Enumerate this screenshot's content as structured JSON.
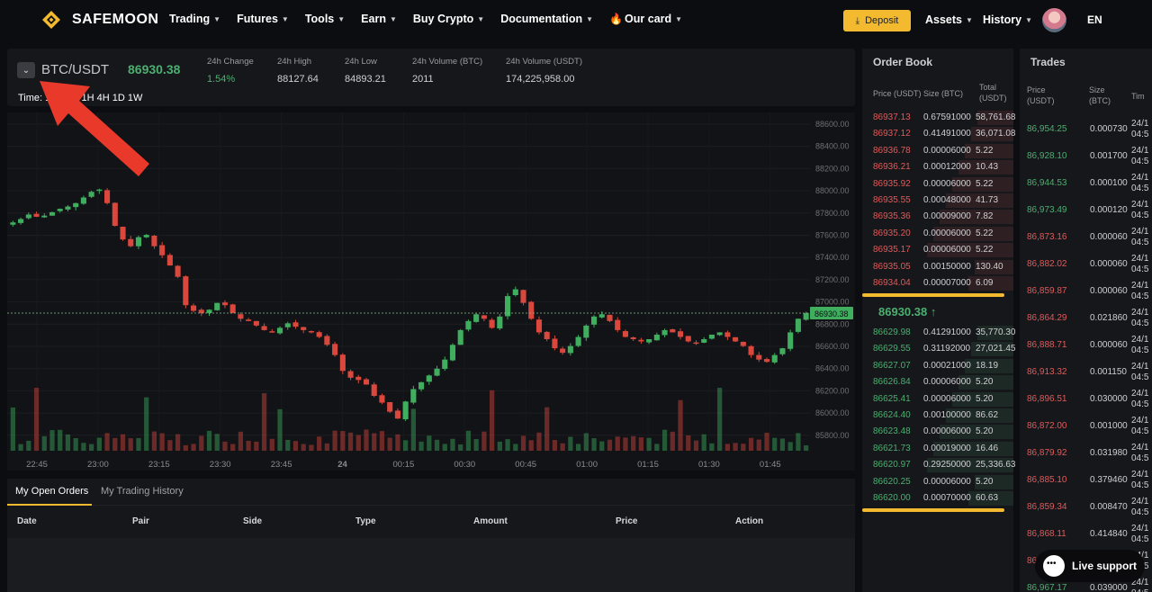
{
  "brand": {
    "name": "SAFEMOON"
  },
  "nav": {
    "items": [
      "Trading",
      "Futures",
      "Tools",
      "Earn",
      "Buy Crypto",
      "Documentation",
      "Our card"
    ],
    "deposit_label": "Deposit",
    "assets_label": "Assets",
    "history_label": "History",
    "lang_label": "EN"
  },
  "ticker": {
    "pair": "BTC/USDT",
    "last_price": "86930.38",
    "stats": [
      {
        "label": "24h Change",
        "value": "1.54%"
      },
      {
        "label": "24h High",
        "value": "88127.64"
      },
      {
        "label": "24h Low",
        "value": "84893.21"
      },
      {
        "label": "24h Volume (BTC)",
        "value": "2011"
      },
      {
        "label": "24h Volume (USDT)",
        "value": "174,225,958.00"
      }
    ],
    "timeframes_label": "Time: 1m",
    "timeframes_tail": "1H 4H 1D 1W"
  },
  "chart_data": {
    "type": "candlestick",
    "x_tick_labels": [
      "22:45",
      "23:00",
      "23:15",
      "23:30",
      "23:45",
      "24",
      "00:15",
      "00:30",
      "00:45",
      "01:00",
      "01:15",
      "01:30",
      "01:45"
    ],
    "y_tick_labels": [
      "88600.00",
      "88400.00",
      "88200.00",
      "88000.00",
      "87800.00",
      "87600.00",
      "87400.00",
      "87200.00",
      "87000.00",
      "86800.00",
      "86600.00",
      "86400.00",
      "86200.00",
      "86000.00",
      "85800.00"
    ],
    "ylim": [
      85700,
      88700
    ],
    "current_price_label": "86930.38",
    "close_path": [
      87730,
      87760,
      87800,
      87780,
      87790,
      87820,
      87850,
      87870,
      87900,
      87950,
      88000,
      88020,
      87900,
      87700,
      87580,
      87520,
      87600,
      87620,
      87520,
      87440,
      87350,
      87250,
      87000,
      86950,
      86930,
      86960,
      87020,
      87000,
      86930,
      86880,
      86860,
      86820,
      86780,
      86760,
      86800,
      86840,
      86810,
      86780,
      86760,
      86720,
      86650,
      86560,
      86420,
      86360,
      86340,
      86300,
      86200,
      86140,
      86060,
      86000,
      86150,
      86260,
      86320,
      86380,
      86440,
      86520,
      86650,
      86780,
      86860,
      86920,
      86880,
      86800,
      86900,
      87080,
      87140,
      87020,
      86880,
      86760,
      86700,
      86620,
      86580,
      86640,
      86720,
      86820,
      86900,
      86920,
      86860,
      86780,
      86720,
      86700,
      86680,
      86700,
      86740,
      86780,
      86760,
      86720,
      86680,
      86660,
      86700,
      86740,
      86760,
      86720,
      86680,
      86640,
      86560,
      86520,
      86500,
      86560,
      86620,
      86760,
      86880,
      86930
    ]
  },
  "orders": {
    "tabs": [
      "My Open Orders",
      "My Trading History"
    ],
    "columns": [
      "Date",
      "Pair",
      "Side",
      "Type",
      "Amount",
      "Price",
      "Action"
    ]
  },
  "orderbook": {
    "title": "Order Book",
    "head_price": "Price (USDT)",
    "head_size": "Size (BTC)",
    "head_total_1": "Total",
    "head_total_2": "(USDT)",
    "asks": [
      [
        "86937.13",
        "0.67591000",
        "58,761.68"
      ],
      [
        "86937.12",
        "0.41491000",
        "36,071.08"
      ],
      [
        "86936.78",
        "0.00006000",
        "5.22"
      ],
      [
        "86936.21",
        "0.00012000",
        "10.43"
      ],
      [
        "86935.92",
        "0.00006000",
        "5.22"
      ],
      [
        "86935.55",
        "0.00048000",
        "41.73"
      ],
      [
        "86935.36",
        "0.00009000",
        "7.82"
      ],
      [
        "86935.20",
        "0.00006000",
        "5.22"
      ],
      [
        "86935.17",
        "0.00006000",
        "5.22"
      ],
      [
        "86935.05",
        "0.00150000",
        "130.40"
      ],
      [
        "86934.04",
        "0.00007000",
        "6.09"
      ]
    ],
    "mid_price": "86930.38 ↑",
    "bids": [
      [
        "86629.98",
        "0.41291000",
        "35,770.30"
      ],
      [
        "86629.55",
        "0.31192000",
        "27,021.45"
      ],
      [
        "86627.07",
        "0.00021000",
        "18.19"
      ],
      [
        "86626.84",
        "0.00006000",
        "5.20"
      ],
      [
        "86625.41",
        "0.00006000",
        "5.20"
      ],
      [
        "86624.40",
        "0.00100000",
        "86.62"
      ],
      [
        "86623.48",
        "0.00006000",
        "5.20"
      ],
      [
        "86621.73",
        "0.00019000",
        "16.46"
      ],
      [
        "86620.97",
        "0.29250000",
        "25,336.63"
      ],
      [
        "86620.25",
        "0.00006000",
        "5.20"
      ],
      [
        "86620.00",
        "0.00070000",
        "60.63"
      ]
    ]
  },
  "trades": {
    "title": "Trades",
    "head_price_1": "Price",
    "head_price_2": "(USDT)",
    "head_size_1": "Size",
    "head_size_2": "(BTC)",
    "head_time": "Tim",
    "rows": [
      [
        "86,954.25",
        "0.000730",
        "green"
      ],
      [
        "86,928.10",
        "0.001700",
        "green"
      ],
      [
        "86,944.53",
        "0.000100",
        "green"
      ],
      [
        "86,973.49",
        "0.000120",
        "green"
      ],
      [
        "86,873.16",
        "0.000060",
        "red"
      ],
      [
        "86,882.02",
        "0.000060",
        "red"
      ],
      [
        "86,859.87",
        "0.000060",
        "red"
      ],
      [
        "86,864.29",
        "0.021860",
        "red"
      ],
      [
        "86,888.71",
        "0.000060",
        "red"
      ],
      [
        "86,913.32",
        "0.001150",
        "red"
      ],
      [
        "86,896.51",
        "0.030000",
        "red"
      ],
      [
        "86,872.00",
        "0.001000",
        "red"
      ],
      [
        "86,879.92",
        "0.031980",
        "red"
      ],
      [
        "86,885.10",
        "0.379460",
        "red"
      ],
      [
        "86,859.34",
        "0.008470",
        "red"
      ],
      [
        "86,868.11",
        "0.414840",
        "red"
      ],
      [
        "86",
        "",
        "red"
      ],
      [
        "86,967.17",
        "0.039000",
        "green"
      ]
    ],
    "time_top": "24/1",
    "time_bottom": "04:5"
  },
  "live_support": {
    "label": "Live support"
  },
  "colors": {
    "accent": "#f3ba2f",
    "up": "#4caf70",
    "down": "#e05a5a",
    "annotation": "#e8392b"
  }
}
